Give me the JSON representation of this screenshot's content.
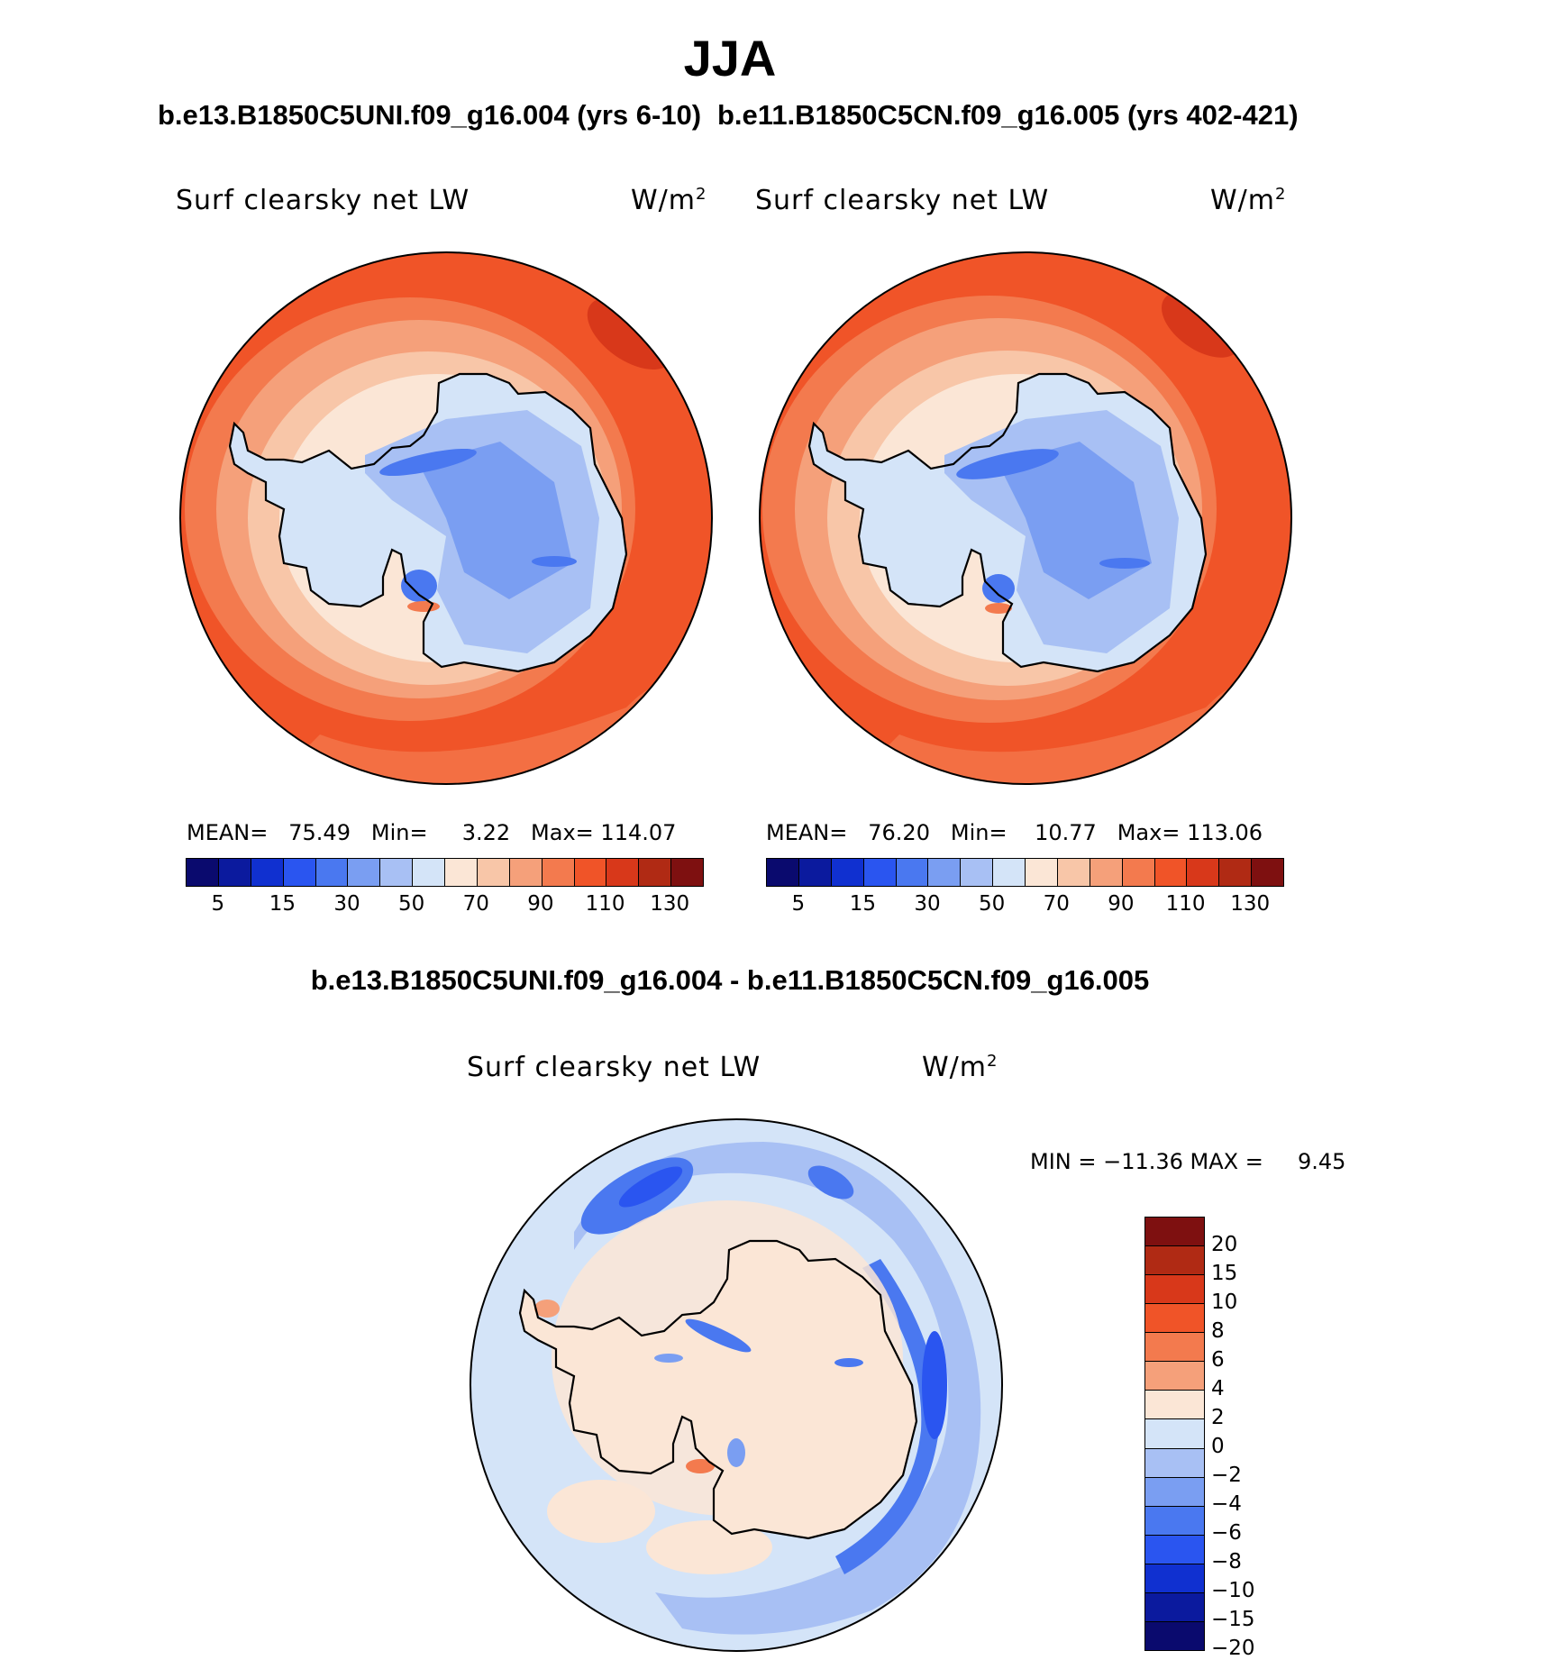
{
  "title": "JJA",
  "panels": [
    {
      "case": "b.e13.B1850C5UNI.f09_g16.004 (yrs 6-10)",
      "variable": "Surf clearsky net LW",
      "units": "W/m",
      "units_sup": "2",
      "stats": {
        "mean_label": "MEAN=",
        "mean": "75.49",
        "min_label": "Min=",
        "min": "3.22",
        "max_label": "Max=",
        "max": "114.07"
      }
    },
    {
      "case": "b.e11.B1850C5CN.f09_g16.005 (yrs 402-421)",
      "variable": "Surf clearsky net LW",
      "units": "W/m",
      "units_sup": "2",
      "stats": {
        "mean_label": "MEAN=",
        "mean": "76.20",
        "min_label": "Min=",
        "min": "10.77",
        "max_label": "Max=",
        "max": "113.06"
      }
    }
  ],
  "colorbar_top": {
    "colors": [
      "#0a0a6e",
      "#0b1a9e",
      "#1030d0",
      "#2a55f0",
      "#4a78f0",
      "#7a9ef2",
      "#a8c0f4",
      "#d4e4f8",
      "#fbe6d6",
      "#f8c6a8",
      "#f5a07a",
      "#f37a4e",
      "#f05428",
      "#d8381a",
      "#b02a14",
      "#7e1010"
    ],
    "tick_labels": [
      "5",
      "15",
      "30",
      "50",
      "70",
      "90",
      "110",
      "130"
    ]
  },
  "difference": {
    "title": "b.e13.B1850C5UNI.f09_g16.004 - b.e11.B1850C5CN.f09_g16.005",
    "variable": "Surf clearsky net LW",
    "units": "W/m",
    "units_sup": "2",
    "minmax_text": "MIN = −11.36 MAX =     9.45"
  },
  "colorbar_diff": {
    "colors": [
      "#7e1010",
      "#b02a14",
      "#d8381a",
      "#f05428",
      "#f37a4e",
      "#f5a07a",
      "#fbe6d6",
      "#d4e4f8",
      "#a8c0f4",
      "#7a9ef2",
      "#4a78f0",
      "#2a55f0",
      "#1030d0",
      "#0b1a9e",
      "#0a0a6e"
    ],
    "tick_labels": [
      "20",
      "15",
      "10",
      "8",
      "6",
      "4",
      "2",
      "0",
      "−2",
      "−4",
      "−6",
      "−8",
      "−10",
      "−15",
      "−20"
    ]
  }
}
